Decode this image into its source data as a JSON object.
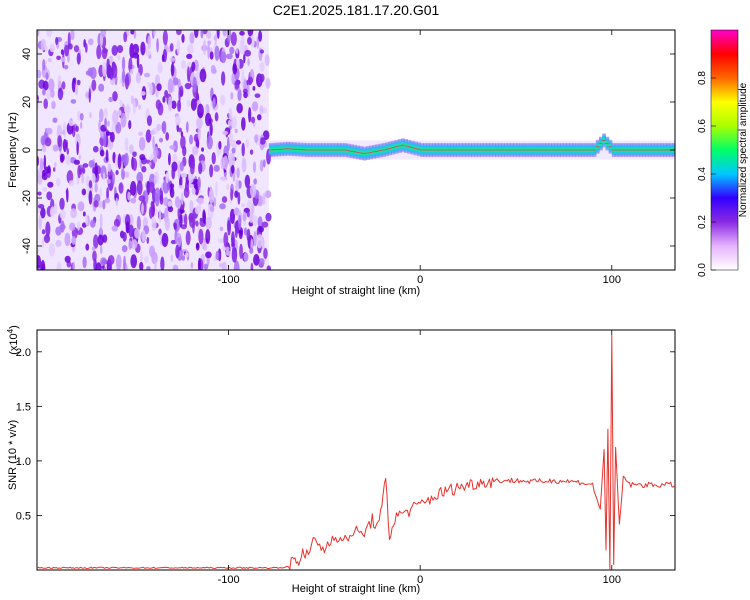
{
  "title": "C2E1.2025.181.17.20.G01",
  "chart_data": [
    {
      "type": "heatmap",
      "title": "C2E1.2025.181.17.20.G01",
      "xlabel": "Height of straight line (km)",
      "ylabel": "Frequency (Hz)",
      "xlim": [
        -200,
        133
      ],
      "ylim": [
        -50,
        50
      ],
      "xticks": [
        -100,
        0,
        100
      ],
      "yticks": [
        -40,
        -20,
        0,
        20,
        40
      ],
      "colorbar": {
        "label": "Normalized spectral amplitude",
        "range": [
          0,
          1
        ],
        "ticks": [
          0.0,
          0.2,
          0.4,
          0.6,
          0.8
        ],
        "colormap": [
          "#ffffff",
          "#e6b3ff",
          "#8a2be2",
          "#3300ff",
          "#00c8ff",
          "#00ff66",
          "#aaff00",
          "#ffff00",
          "#ff6600",
          "#ff0000",
          "#ff00cc"
        ],
        "placement": "right"
      },
      "noise_region_x": [
        -200,
        -79
      ],
      "signal_track": [
        {
          "x": -79,
          "freq": 0.0
        },
        {
          "x": -70,
          "freq": 0.5
        },
        {
          "x": -60,
          "freq": 0.0
        },
        {
          "x": -50,
          "freq": 0.0
        },
        {
          "x": -40,
          "freq": 0.0
        },
        {
          "x": -30,
          "freq": -1.5
        },
        {
          "x": -20,
          "freq": 0.0
        },
        {
          "x": -10,
          "freq": 2.0
        },
        {
          "x": 0,
          "freq": 0.0
        },
        {
          "x": 50,
          "freq": 0.0
        },
        {
          "x": 90,
          "freq": 0.0
        },
        {
          "x": 95,
          "freq": 4.0
        },
        {
          "x": 100,
          "freq": 0.0
        },
        {
          "x": 133,
          "freq": 0.0
        }
      ]
    },
    {
      "type": "line",
      "xlabel": "Height of straight line (km)",
      "ylabel": "SNR (10 * v/v)",
      "y_multiplier": "(x10",
      "y_multiplier_exp": "4",
      "y_multiplier_close": ")",
      "xlim": [
        -200,
        133
      ],
      "ylim": [
        0,
        2.2
      ],
      "xticks": [
        -100,
        0,
        100
      ],
      "yticks": [
        0.5,
        1.0,
        1.5,
        2.0
      ],
      "ytick_labels": [
        "0.5",
        "1.0",
        "1.5",
        "2.0"
      ],
      "series_color": "#e8322c",
      "series": [
        {
          "x": [
            -200,
            -150,
            -100,
            -75,
            -68,
            -66,
            -64,
            -62,
            -60,
            -55,
            -50,
            -45,
            -40,
            -35,
            -30,
            -25,
            -22,
            -20,
            -18,
            -16,
            -14,
            -10,
            -5,
            0,
            5,
            10,
            20,
            30,
            40,
            50,
            60,
            70,
            80,
            85,
            90,
            94,
            96,
            97,
            98,
            99,
            100,
            101,
            102,
            104,
            106,
            110,
            120,
            133
          ],
          "y": [
            0.02,
            0.02,
            0.02,
            0.02,
            0.03,
            0.14,
            0.05,
            0.17,
            0.1,
            0.28,
            0.18,
            0.33,
            0.25,
            0.36,
            0.32,
            0.46,
            0.4,
            0.55,
            0.86,
            0.28,
            0.45,
            0.52,
            0.55,
            0.6,
            0.65,
            0.7,
            0.76,
            0.8,
            0.82,
            0.82,
            0.81,
            0.82,
            0.81,
            0.8,
            0.78,
            0.55,
            1.1,
            0.2,
            1.3,
            0.02,
            2.15,
            0.05,
            1.1,
            0.4,
            0.85,
            0.78,
            0.78,
            0.78
          ]
        }
      ]
    }
  ]
}
